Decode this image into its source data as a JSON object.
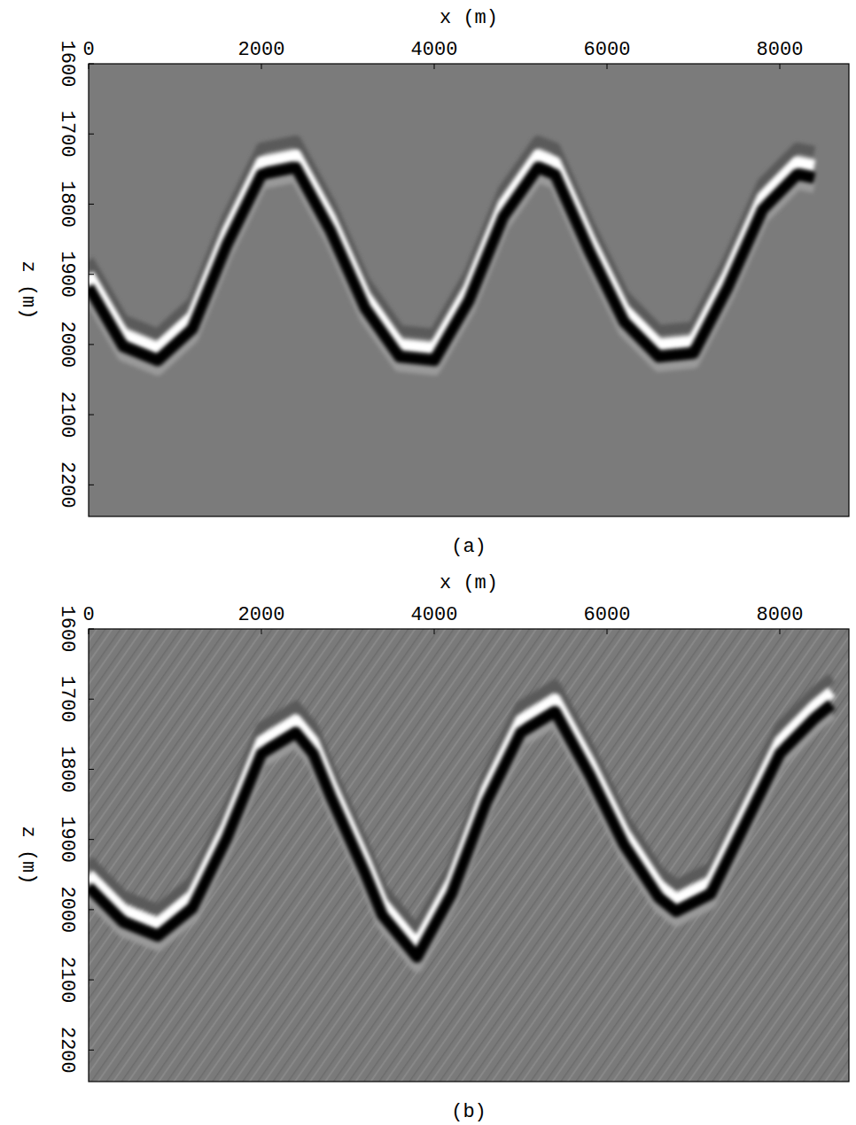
{
  "chart_data": [
    {
      "type": "seismic_image",
      "caption": "(a)",
      "x_label": "x (m)",
      "y_label": "z (m)",
      "xlim": [
        0,
        8800
      ],
      "xticks": [
        0,
        2000,
        4000,
        6000,
        8000
      ],
      "ylim": [
        1600,
        2245
      ],
      "yticks": [
        1600,
        1700,
        1800,
        1900,
        2000,
        2100,
        2200
      ],
      "series": [
        {
          "x": [
            0,
            400,
            800,
            1200,
            1600,
            2000,
            2400,
            2800,
            3200,
            3600,
            4000,
            4400,
            4800,
            5200,
            5400,
            5800,
            6200,
            6600,
            7000,
            7400,
            7800,
            8200,
            8400
          ],
          "values": [
            1900,
            1985,
            2005,
            1960,
            1840,
            1740,
            1730,
            1820,
            1930,
            2000,
            2005,
            1920,
            1800,
            1730,
            1740,
            1850,
            1950,
            2000,
            1995,
            1900,
            1790,
            1740,
            1745
          ]
        }
      ]
    },
    {
      "type": "seismic_image",
      "caption": "(b)",
      "x_label": "x (m)",
      "y_label": "z (m)",
      "xlim": [
        0,
        8800
      ],
      "xticks": [
        0,
        2000,
        4000,
        6000,
        8000
      ],
      "ylim": [
        1600,
        2245
      ],
      "yticks": [
        1600,
        1700,
        1800,
        1900,
        2000,
        2100,
        2200
      ],
      "series": [
        {
          "x": [
            0,
            400,
            800,
            1200,
            1600,
            2000,
            2400,
            2600,
            2800,
            3200,
            3400,
            3800,
            4200,
            4600,
            5000,
            5400,
            5800,
            6200,
            6600,
            6800,
            7200,
            7600,
            8000,
            8400,
            8600
          ],
          "values": [
            1950,
            2000,
            2020,
            1980,
            1880,
            1760,
            1730,
            1760,
            1820,
            1930,
            1990,
            2050,
            1960,
            1830,
            1730,
            1700,
            1790,
            1890,
            1965,
            1985,
            1960,
            1860,
            1760,
            1710,
            1690
          ]
        }
      ]
    }
  ]
}
